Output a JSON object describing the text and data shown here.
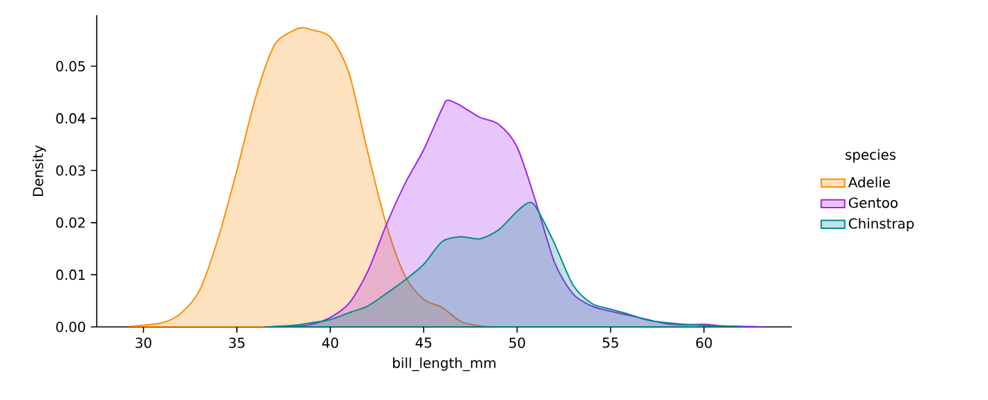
{
  "chart_data": {
    "type": "area",
    "xlabel": "bill_length_mm",
    "ylabel": "Density",
    "legend_title": "species",
    "xlim": [
      27.5,
      64.7
    ],
    "ylim": [
      0,
      0.0598
    ],
    "xticks": [
      30,
      35,
      40,
      45,
      50,
      55,
      60
    ],
    "yticks": [
      {
        "value": 0,
        "label": "0.00"
      },
      {
        "value": 0.01,
        "label": "0.01"
      },
      {
        "value": 0.02,
        "label": "0.02"
      },
      {
        "value": 0.03,
        "label": "0.03"
      },
      {
        "value": 0.04,
        "label": "0.04"
      },
      {
        "value": 0.05,
        "label": "0.05"
      }
    ],
    "grid": false,
    "legend": "right",
    "marker": "none",
    "line_style": "solid",
    "series": [
      {
        "name": "Adelie",
        "color": "#ff8c00",
        "x": [
          29.3,
          31,
          32,
          33,
          34,
          35,
          36,
          37,
          38,
          38.5,
          39,
          40,
          41,
          42,
          43,
          44,
          45,
          46,
          47,
          48,
          48.9
        ],
        "values": [
          0.0001,
          0.0008,
          0.0026,
          0.007,
          0.017,
          0.03,
          0.044,
          0.054,
          0.0568,
          0.0574,
          0.057,
          0.0556,
          0.0487,
          0.0336,
          0.0196,
          0.0098,
          0.0053,
          0.0037,
          0.001,
          0.0002,
          0
        ]
      },
      {
        "name": "Gentoo",
        "color": "#a020f0",
        "x": [
          36.5,
          38,
          39,
          40,
          41,
          42,
          43,
          44,
          45,
          46,
          46.3,
          47,
          48,
          49,
          50,
          51,
          52,
          53,
          54,
          55,
          56,
          57,
          58,
          59,
          60,
          61,
          62,
          63.2
        ],
        "values": [
          0,
          0.0001,
          0.0005,
          0.0018,
          0.0045,
          0.0106,
          0.0196,
          0.0275,
          0.034,
          0.042,
          0.0435,
          0.0424,
          0.0402,
          0.0389,
          0.0345,
          0.024,
          0.0124,
          0.0063,
          0.004,
          0.003,
          0.0022,
          0.0014,
          0.0006,
          0.0004,
          0.0005,
          0.0002,
          0.0001,
          0
        ]
      },
      {
        "name": "Chinstrap",
        "color": "#008b8b",
        "x": [
          36.6,
          38,
          39,
          40,
          41,
          42,
          43,
          44,
          45,
          46,
          47,
          48,
          49,
          50,
          50.6,
          51,
          52,
          53,
          54,
          55,
          56,
          57,
          58,
          59,
          60,
          61,
          62
        ],
        "values": [
          0,
          0.0003,
          0.0008,
          0.0014,
          0.0027,
          0.004,
          0.0064,
          0.009,
          0.012,
          0.0164,
          0.0173,
          0.0169,
          0.0186,
          0.0222,
          0.0238,
          0.023,
          0.016,
          0.008,
          0.0045,
          0.0034,
          0.0024,
          0.0013,
          0.0008,
          0.0005,
          0.0003,
          0.0001,
          0
        ]
      }
    ]
  }
}
